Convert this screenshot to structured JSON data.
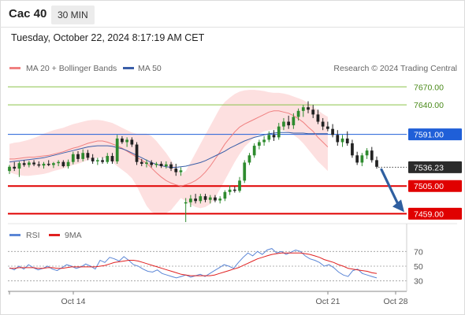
{
  "header": {
    "instrument": "Cac 40",
    "timeframe": "30 MIN",
    "datetime": "Tuesday, October 22, 2024 8:17:19 AM CET",
    "credit": "Research © 2024 Trading Central"
  },
  "legend": {
    "ma20": "MA 20 + Bollinger Bands",
    "ma50": "MA 50",
    "rsi": "RSI",
    "ma9": "9MA"
  },
  "colors": {
    "ma20": "#f08080",
    "bands_fill": "#fde0e0",
    "ma50": "#3a5ea8",
    "resistance_green": "#8bc34a",
    "pivot_blue": "#1f5fd8",
    "support_red": "#e00000",
    "candle_up": "#2e8b2e",
    "candle_down": "#222222",
    "arrow": "#2f5fa0",
    "rsi": "#5b86d6",
    "rsi_ma": "#e02020"
  },
  "chart_data": [
    {
      "type": "candlestick",
      "ylim": [
        7445,
        7690
      ],
      "levels": [
        {
          "value": 7670.0,
          "label": "7670.00",
          "style": "green"
        },
        {
          "value": 7640.0,
          "label": "7640.00",
          "style": "green"
        },
        {
          "value": 7591.0,
          "label": "7591.00",
          "style": "blue"
        },
        {
          "value": 7536.23,
          "label": "7536.23",
          "style": "current"
        },
        {
          "value": 7505.0,
          "label": "7505.00",
          "style": "red"
        },
        {
          "value": 7459.0,
          "label": "7459.00",
          "style": "red"
        }
      ],
      "ma20": [
        7550,
        7550,
        7551,
        7552,
        7553,
        7553,
        7554,
        7555,
        7556,
        7558,
        7560,
        7562,
        7565,
        7568,
        7570,
        7573,
        7576,
        7578,
        7580,
        7580,
        7578,
        7575,
        7572,
        7568,
        7563,
        7558,
        7553,
        7548,
        7543,
        7535,
        7527,
        7520,
        7514,
        7510,
        7507,
        7505,
        7507,
        7510,
        7514,
        7520,
        7528,
        7538,
        7550,
        7562,
        7575,
        7585,
        7595,
        7603,
        7608,
        7612,
        7616,
        7620,
        7624,
        7628,
        7630,
        7630,
        7628,
        7626,
        7622,
        7617,
        7611,
        7603,
        7596,
        7586,
        7578,
        7570
      ],
      "ma50": [
        7545,
        7546,
        7547,
        7548,
        7549,
        7550,
        7551,
        7552,
        7554,
        7556,
        7558,
        7560,
        7562,
        7564,
        7566,
        7568,
        7570,
        7571,
        7572,
        7572,
        7572,
        7571,
        7569,
        7567,
        7564,
        7560,
        7556,
        7552,
        7548,
        7544,
        7541,
        7539,
        7537,
        7536,
        7536,
        7537,
        7538,
        7540,
        7542,
        7544,
        7547,
        7551,
        7555,
        7559,
        7563,
        7568,
        7572,
        7576,
        7580,
        7583,
        7586,
        7588,
        7590,
        7592,
        7593,
        7594,
        7594,
        7594,
        7593,
        7593,
        7593,
        7592,
        7592,
        7592,
        7592,
        7592
      ],
      "band_upper": [
        7575,
        7577,
        7578,
        7580,
        7582,
        7585,
        7588,
        7592,
        7595,
        7598,
        7600,
        7602,
        7605,
        7608,
        7610,
        7612,
        7614,
        7615,
        7615,
        7614,
        7612,
        7610,
        7606,
        7602,
        7598,
        7594,
        7592,
        7592,
        7592,
        7588,
        7580,
        7570,
        7560,
        7548,
        7535,
        7525,
        7530,
        7545,
        7560,
        7575,
        7590,
        7605,
        7620,
        7635,
        7645,
        7652,
        7658,
        7662,
        7664,
        7665,
        7665,
        7664,
        7663,
        7661,
        7660,
        7660,
        7659,
        7657,
        7654,
        7651,
        7648,
        7643,
        7637,
        7631,
        7625,
        7620
      ],
      "band_lower": [
        7528,
        7525,
        7523,
        7522,
        7522,
        7523,
        7524,
        7525,
        7527,
        7530,
        7532,
        7534,
        7537,
        7540,
        7542,
        7545,
        7548,
        7550,
        7552,
        7552,
        7550,
        7545,
        7538,
        7532,
        7526,
        7518,
        7505,
        7488,
        7472,
        7462,
        7458,
        7458,
        7460,
        7465,
        7475,
        7485,
        7480,
        7474,
        7470,
        7468,
        7470,
        7475,
        7485,
        7500,
        7515,
        7530,
        7545,
        7558,
        7570,
        7578,
        7586,
        7592,
        7596,
        7598,
        7599,
        7599,
        7597,
        7594,
        7590,
        7584,
        7576,
        7566,
        7556,
        7546,
        7538,
        7530
      ],
      "candles": [
        {
          "o": 7530,
          "h": 7540,
          "l": 7525,
          "c": 7537
        },
        {
          "o": 7537,
          "h": 7545,
          "l": 7530,
          "c": 7534
        },
        {
          "o": 7534,
          "h": 7546,
          "l": 7520,
          "c": 7543
        },
        {
          "o": 7543,
          "h": 7548,
          "l": 7537,
          "c": 7540
        },
        {
          "o": 7540,
          "h": 7547,
          "l": 7536,
          "c": 7544
        },
        {
          "o": 7544,
          "h": 7548,
          "l": 7538,
          "c": 7541
        },
        {
          "o": 7541,
          "h": 7546,
          "l": 7536,
          "c": 7539
        },
        {
          "o": 7539,
          "h": 7545,
          "l": 7534,
          "c": 7542
        },
        {
          "o": 7542,
          "h": 7548,
          "l": 7538,
          "c": 7540
        },
        {
          "o": 7540,
          "h": 7545,
          "l": 7535,
          "c": 7543
        },
        {
          "o": 7543,
          "h": 7548,
          "l": 7538,
          "c": 7545
        },
        {
          "o": 7545,
          "h": 7548,
          "l": 7536,
          "c": 7538
        },
        {
          "o": 7538,
          "h": 7549,
          "l": 7534,
          "c": 7545
        },
        {
          "o": 7545,
          "h": 7562,
          "l": 7541,
          "c": 7558
        },
        {
          "o": 7558,
          "h": 7563,
          "l": 7545,
          "c": 7550
        },
        {
          "o": 7550,
          "h": 7566,
          "l": 7546,
          "c": 7560
        },
        {
          "o": 7560,
          "h": 7565,
          "l": 7548,
          "c": 7552
        },
        {
          "o": 7552,
          "h": 7558,
          "l": 7542,
          "c": 7546
        },
        {
          "o": 7546,
          "h": 7552,
          "l": 7540,
          "c": 7548
        },
        {
          "o": 7548,
          "h": 7553,
          "l": 7542,
          "c": 7545
        },
        {
          "o": 7545,
          "h": 7560,
          "l": 7542,
          "c": 7555
        },
        {
          "o": 7555,
          "h": 7560,
          "l": 7542,
          "c": 7546
        },
        {
          "o": 7546,
          "h": 7590,
          "l": 7542,
          "c": 7584
        },
        {
          "o": 7584,
          "h": 7588,
          "l": 7575,
          "c": 7578
        },
        {
          "o": 7578,
          "h": 7586,
          "l": 7570,
          "c": 7582
        },
        {
          "o": 7582,
          "h": 7586,
          "l": 7570,
          "c": 7574
        },
        {
          "o": 7574,
          "h": 7578,
          "l": 7540,
          "c": 7545
        },
        {
          "o": 7545,
          "h": 7550,
          "l": 7538,
          "c": 7542
        },
        {
          "o": 7542,
          "h": 7549,
          "l": 7536,
          "c": 7544
        },
        {
          "o": 7544,
          "h": 7548,
          "l": 7536,
          "c": 7540
        },
        {
          "o": 7540,
          "h": 7545,
          "l": 7536,
          "c": 7542
        },
        {
          "o": 7542,
          "h": 7546,
          "l": 7535,
          "c": 7538
        },
        {
          "o": 7538,
          "h": 7546,
          "l": 7534,
          "c": 7541
        },
        {
          "o": 7541,
          "h": 7545,
          "l": 7530,
          "c": 7534
        },
        {
          "o": 7534,
          "h": 7542,
          "l": 7522,
          "c": 7528
        },
        {
          "o": 7528,
          "h": 7536,
          "l": 7522,
          "c": 7531
        },
        {
          "o": 7476,
          "h": 7485,
          "l": 7445,
          "c": 7478
        },
        {
          "o": 7478,
          "h": 7490,
          "l": 7470,
          "c": 7484
        },
        {
          "o": 7484,
          "h": 7492,
          "l": 7476,
          "c": 7480
        },
        {
          "o": 7480,
          "h": 7492,
          "l": 7476,
          "c": 7488
        },
        {
          "o": 7488,
          "h": 7492,
          "l": 7478,
          "c": 7482
        },
        {
          "o": 7482,
          "h": 7490,
          "l": 7476,
          "c": 7486
        },
        {
          "o": 7486,
          "h": 7490,
          "l": 7478,
          "c": 7481
        },
        {
          "o": 7481,
          "h": 7488,
          "l": 7476,
          "c": 7484
        },
        {
          "o": 7484,
          "h": 7498,
          "l": 7480,
          "c": 7495
        },
        {
          "o": 7495,
          "h": 7506,
          "l": 7490,
          "c": 7499
        },
        {
          "o": 7499,
          "h": 7504,
          "l": 7494,
          "c": 7497
        },
        {
          "o": 7497,
          "h": 7520,
          "l": 7494,
          "c": 7514
        },
        {
          "o": 7514,
          "h": 7548,
          "l": 7510,
          "c": 7544
        },
        {
          "o": 7544,
          "h": 7560,
          "l": 7540,
          "c": 7556
        },
        {
          "o": 7556,
          "h": 7576,
          "l": 7552,
          "c": 7572
        },
        {
          "o": 7572,
          "h": 7582,
          "l": 7566,
          "c": 7578
        },
        {
          "o": 7578,
          "h": 7588,
          "l": 7572,
          "c": 7582
        },
        {
          "o": 7582,
          "h": 7596,
          "l": 7578,
          "c": 7590
        },
        {
          "o": 7590,
          "h": 7598,
          "l": 7580,
          "c": 7586
        },
        {
          "o": 7586,
          "h": 7610,
          "l": 7582,
          "c": 7604
        },
        {
          "o": 7604,
          "h": 7618,
          "l": 7598,
          "c": 7612
        },
        {
          "o": 7612,
          "h": 7622,
          "l": 7600,
          "c": 7606
        },
        {
          "o": 7606,
          "h": 7626,
          "l": 7600,
          "c": 7620
        },
        {
          "o": 7620,
          "h": 7634,
          "l": 7614,
          "c": 7630
        },
        {
          "o": 7630,
          "h": 7640,
          "l": 7620,
          "c": 7636
        },
        {
          "o": 7636,
          "h": 7646,
          "l": 7626,
          "c": 7632
        },
        {
          "o": 7632,
          "h": 7640,
          "l": 7618,
          "c": 7624
        },
        {
          "o": 7624,
          "h": 7632,
          "l": 7608,
          "c": 7612
        },
        {
          "o": 7612,
          "h": 7618,
          "l": 7598,
          "c": 7604
        },
        {
          "o": 7604,
          "h": 7612,
          "l": 7596,
          "c": 7600
        },
        {
          "o": 7600,
          "h": 7608,
          "l": 7586,
          "c": 7590
        },
        {
          "o": 7590,
          "h": 7598,
          "l": 7572,
          "c": 7578
        },
        {
          "o": 7578,
          "h": 7590,
          "l": 7570,
          "c": 7584
        },
        {
          "o": 7584,
          "h": 7596,
          "l": 7572,
          "c": 7576
        },
        {
          "o": 7576,
          "h": 7582,
          "l": 7552,
          "c": 7556
        },
        {
          "o": 7556,
          "h": 7562,
          "l": 7540,
          "c": 7544
        },
        {
          "o": 7544,
          "h": 7560,
          "l": 7538,
          "c": 7556
        },
        {
          "o": 7556,
          "h": 7568,
          "l": 7550,
          "c": 7564
        },
        {
          "o": 7564,
          "h": 7570,
          "l": 7544,
          "c": 7548
        },
        {
          "o": 7548,
          "h": 7554,
          "l": 7534,
          "c": 7537
        }
      ],
      "projection": {
        "from": 7536.23,
        "to": 7459.0
      }
    },
    {
      "type": "line",
      "ylim": [
        20,
        80
      ],
      "yticks": [
        70,
        50,
        30
      ],
      "xticks": [
        "Oct 14",
        "Oct 21",
        "Oct 28"
      ],
      "series": [
        {
          "name": "RSI",
          "values": [
            48,
            45,
            50,
            46,
            52,
            48,
            45,
            47,
            50,
            46,
            44,
            48,
            52,
            50,
            47,
            49,
            53,
            50,
            46,
            58,
            55,
            62,
            60,
            57,
            63,
            58,
            52,
            50,
            46,
            43,
            42,
            45,
            40,
            38,
            36,
            34,
            36,
            38,
            35,
            37,
            39,
            36,
            40,
            44,
            48,
            52,
            50,
            47,
            55,
            62,
            68,
            64,
            70,
            66,
            72,
            74,
            68,
            70,
            66,
            69,
            72,
            70,
            64,
            60,
            58,
            55,
            50,
            52,
            48,
            42,
            38,
            36,
            44,
            46,
            40,
            38,
            36,
            34
          ]
        },
        {
          "name": "9MA",
          "values": [
            47,
            47,
            48,
            48,
            48,
            48,
            47,
            47,
            48,
            48,
            47,
            47,
            48,
            49,
            49,
            49,
            49,
            49,
            49,
            50,
            51,
            53,
            55,
            56,
            57,
            58,
            58,
            57,
            55,
            53,
            51,
            49,
            47,
            45,
            43,
            41,
            39,
            38,
            37,
            37,
            37,
            37,
            37,
            38,
            40,
            42,
            44,
            46,
            48,
            51,
            54,
            57,
            60,
            62,
            64,
            66,
            67,
            68,
            68,
            68,
            68,
            68,
            67,
            66,
            64,
            62,
            59,
            57,
            55,
            52,
            50,
            47,
            46,
            45,
            44,
            43,
            41,
            40
          ]
        }
      ]
    }
  ]
}
